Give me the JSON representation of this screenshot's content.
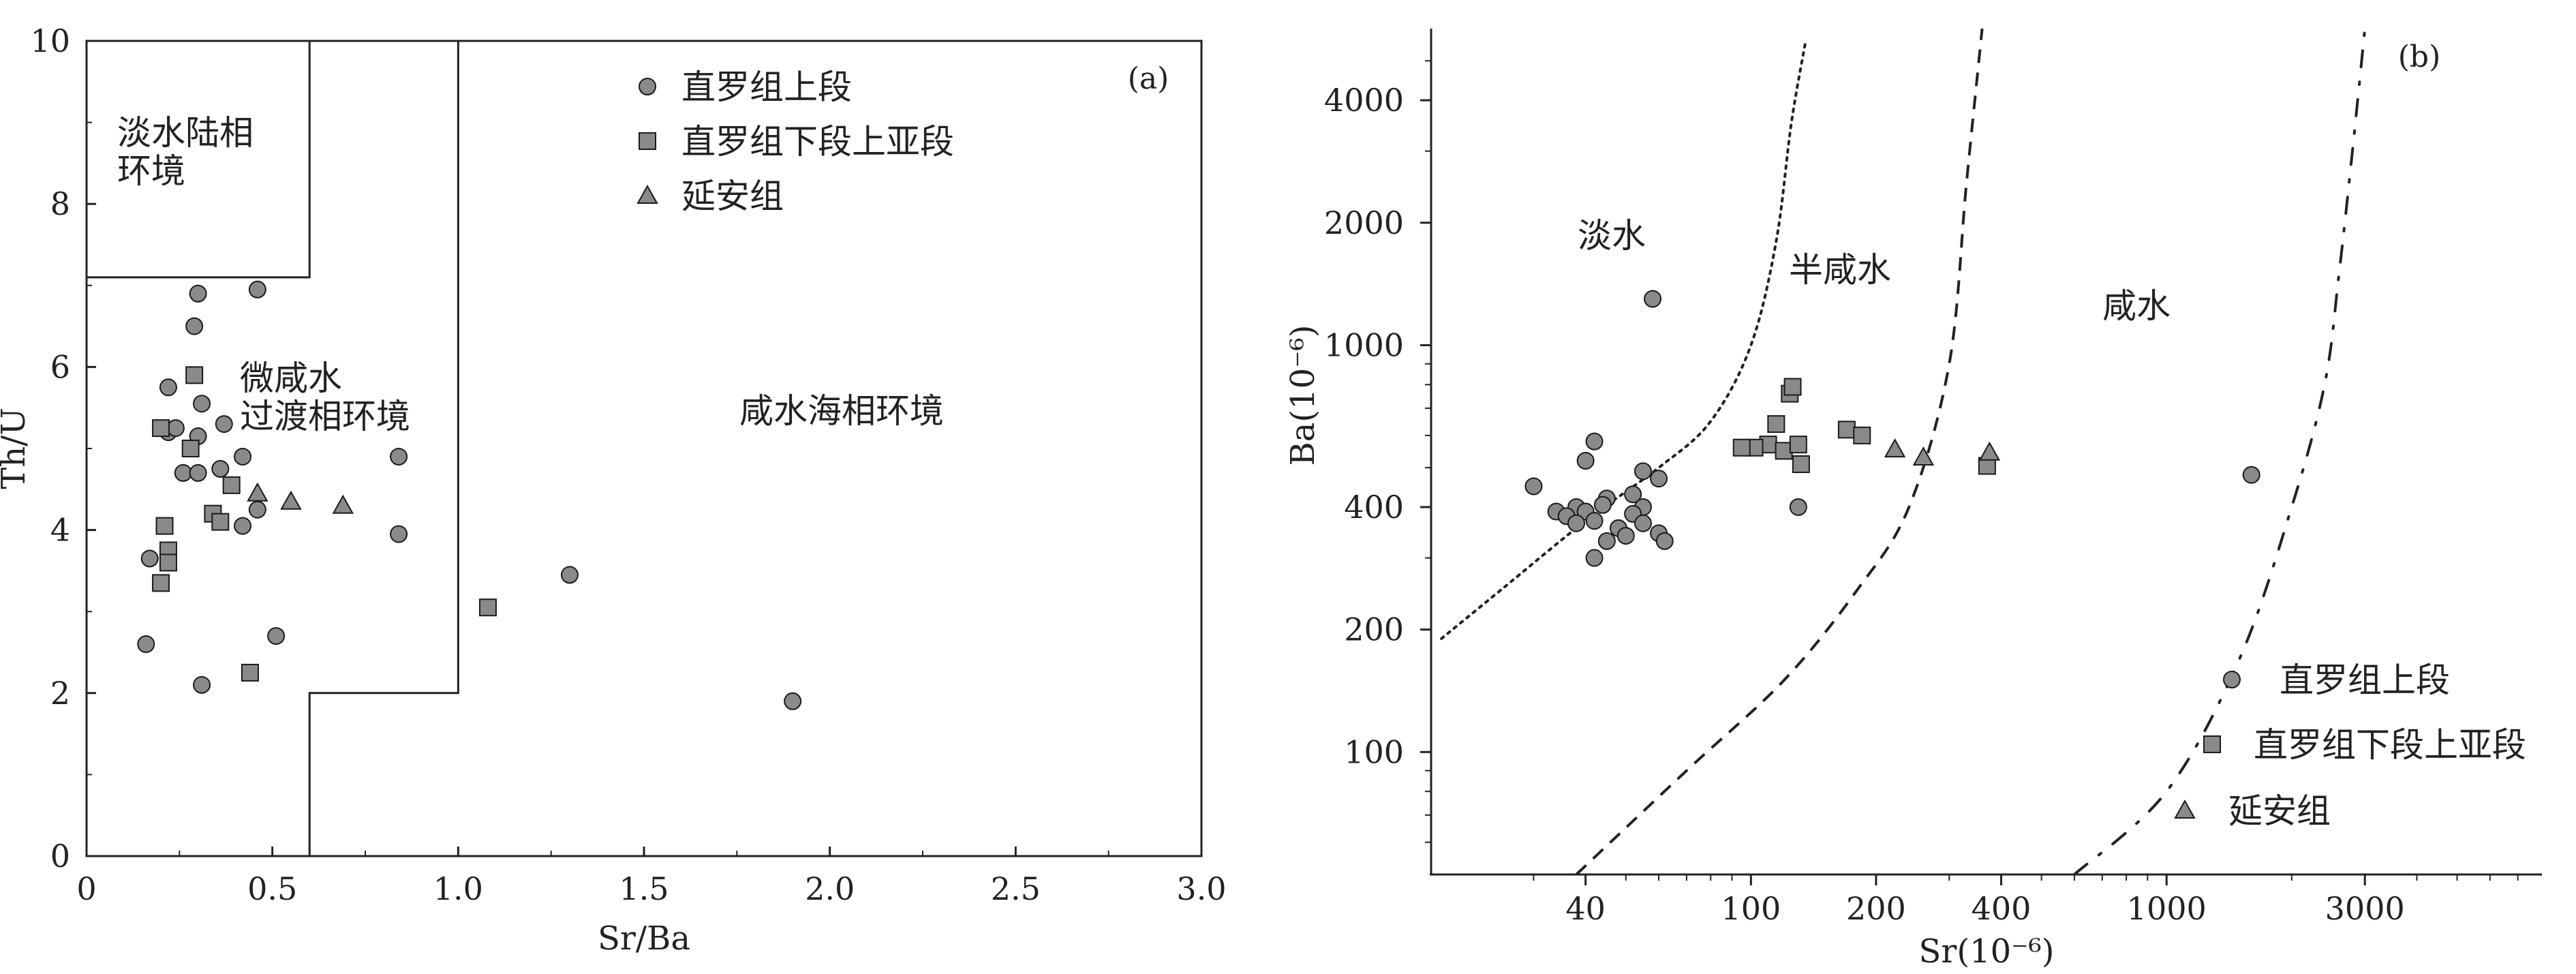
{
  "chart_data": [
    {
      "panel": "a",
      "type": "scatter",
      "panel_label": "(a)",
      "xlabel": "Sr/Ba",
      "ylabel": "Th/U",
      "xlim": [
        0,
        3.0
      ],
      "ylim": [
        0,
        10
      ],
      "x_ticks": [
        "0",
        "0.5",
        "1.0",
        "1.5",
        "2.0",
        "2.5",
        "3.0"
      ],
      "y_ticks": [
        "0",
        "2",
        "4",
        "6",
        "8",
        "10"
      ],
      "regions": [
        {
          "name": "freshwater",
          "label_lines": [
            "淡水陆相",
            "环境"
          ]
        },
        {
          "name": "brackish",
          "label_lines": [
            "微咸水",
            "过渡相环境"
          ]
        },
        {
          "name": "saline",
          "label_lines": [
            "咸水海相环境"
          ]
        }
      ],
      "boundaries": {
        "freshwater_box": [
          [
            0,
            10
          ],
          [
            0.6,
            10
          ],
          [
            0.6,
            7.1
          ],
          [
            0,
            7.1
          ]
        ],
        "brackish_right": [
          [
            1.0,
            10
          ],
          [
            1.0,
            2.0
          ],
          [
            0.6,
            2.0
          ],
          [
            0.6,
            0
          ]
        ]
      },
      "legend": {
        "position": "top-center"
      },
      "series": [
        {
          "name": "直罗组上段",
          "marker": "circle",
          "points": [
            [
              0.3,
              6.9
            ],
            [
              0.46,
              6.95
            ],
            [
              0.29,
              6.5
            ],
            [
              0.22,
              5.75
            ],
            [
              0.31,
              5.55
            ],
            [
              0.22,
              5.2
            ],
            [
              0.24,
              5.25
            ],
            [
              0.3,
              5.15
            ],
            [
              0.37,
              5.3
            ],
            [
              0.42,
              4.9
            ],
            [
              0.26,
              4.7
            ],
            [
              0.3,
              4.7
            ],
            [
              0.36,
              4.75
            ],
            [
              0.84,
              4.9
            ],
            [
              0.46,
              4.25
            ],
            [
              0.42,
              4.05
            ],
            [
              0.84,
              3.95
            ],
            [
              0.17,
              3.65
            ],
            [
              0.16,
              2.6
            ],
            [
              0.51,
              2.7
            ],
            [
              0.31,
              2.1
            ],
            [
              1.3,
              3.45
            ],
            [
              1.9,
              1.9
            ]
          ]
        },
        {
          "name": "直罗组下段上亚段",
          "marker": "square",
          "points": [
            [
              0.29,
              5.9
            ],
            [
              0.2,
              5.25
            ],
            [
              0.28,
              5.0
            ],
            [
              0.39,
              4.55
            ],
            [
              0.34,
              4.2
            ],
            [
              0.36,
              4.1
            ],
            [
              0.21,
              4.05
            ],
            [
              0.22,
              3.75
            ],
            [
              0.22,
              3.6
            ],
            [
              0.2,
              3.35
            ],
            [
              0.44,
              2.25
            ],
            [
              1.08,
              3.05
            ]
          ]
        },
        {
          "name": "延安组",
          "marker": "triangle",
          "points": [
            [
              0.46,
              4.45
            ],
            [
              0.55,
              4.35
            ],
            [
              0.69,
              4.3
            ]
          ]
        }
      ]
    },
    {
      "panel": "b",
      "type": "scatter",
      "panel_label": "(b)",
      "xlabel": "Sr(10⁻⁶)",
      "ylabel": "Ba(10⁻⁶)",
      "x_scale": "log",
      "y_scale": "log",
      "xlim": [
        17,
        8000
      ],
      "ylim": [
        50,
        6000
      ],
      "x_ticks": [
        "40",
        "100",
        "200",
        "400",
        "1000",
        "3000"
      ],
      "y_ticks": [
        "100",
        "200",
        "400",
        "1000",
        "2000",
        "4000"
      ],
      "regions": [
        {
          "name": "fresh",
          "label": "淡水"
        },
        {
          "name": "semi-saline",
          "label": "半咸水"
        },
        {
          "name": "saline",
          "label": "咸水"
        }
      ],
      "boundaries": {
        "dotted": [
          [
            18,
            190
          ],
          [
            25,
            250
          ],
          [
            40,
            370
          ],
          [
            60,
            500
          ],
          [
            80,
            650
          ],
          [
            100,
            1000
          ],
          [
            115,
            1800
          ],
          [
            125,
            3500
          ],
          [
            135,
            5500
          ]
        ],
        "dashed": [
          [
            38,
            50
          ],
          [
            70,
            90
          ],
          [
            120,
            150
          ],
          [
            180,
            250
          ],
          [
            240,
            400
          ],
          [
            300,
            900
          ],
          [
            330,
            2500
          ],
          [
            360,
            6000
          ]
        ],
        "dashdot": [
          [
            600,
            50
          ],
          [
            1000,
            80
          ],
          [
            1500,
            170
          ],
          [
            2000,
            400
          ],
          [
            2400,
            800
          ],
          [
            2600,
            1500
          ],
          [
            2800,
            3000
          ],
          [
            3000,
            6000
          ]
        ]
      },
      "legend": {
        "position": "bottom-right"
      },
      "series": [
        {
          "name": "直罗组上段",
          "marker": "circle",
          "points": [
            [
              58,
              1300
            ],
            [
              30,
              450
            ],
            [
              40,
              520
            ],
            [
              42,
              580
            ],
            [
              55,
              490
            ],
            [
              60,
              470
            ],
            [
              45,
              420
            ],
            [
              52,
              430
            ],
            [
              38,
              400
            ],
            [
              44,
              405
            ],
            [
              55,
              400
            ],
            [
              34,
              390
            ],
            [
              36,
              380
            ],
            [
              40,
              390
            ],
            [
              52,
              385
            ],
            [
              38,
              365
            ],
            [
              42,
              370
            ],
            [
              48,
              355
            ],
            [
              55,
              365
            ],
            [
              60,
              345
            ],
            [
              45,
              330
            ],
            [
              50,
              340
            ],
            [
              62,
              330
            ],
            [
              42,
              300
            ],
            [
              130,
              400
            ],
            [
              1600,
              480
            ]
          ]
        },
        {
          "name": "直罗组下段上亚段",
          "marker": "square",
          "points": [
            [
              124,
              760
            ],
            [
              126,
              790
            ],
            [
              115,
              640
            ],
            [
              110,
              570
            ],
            [
              102,
              560
            ],
            [
              95,
              560
            ],
            [
              120,
              550
            ],
            [
              130,
              570
            ],
            [
              132,
              510
            ],
            [
              170,
              620
            ],
            [
              185,
              600
            ],
            [
              370,
              505
            ]
          ]
        },
        {
          "name": "延安组",
          "marker": "triangle",
          "points": [
            [
              222,
              555
            ],
            [
              260,
              530
            ],
            [
              375,
              545
            ]
          ]
        }
      ]
    }
  ]
}
